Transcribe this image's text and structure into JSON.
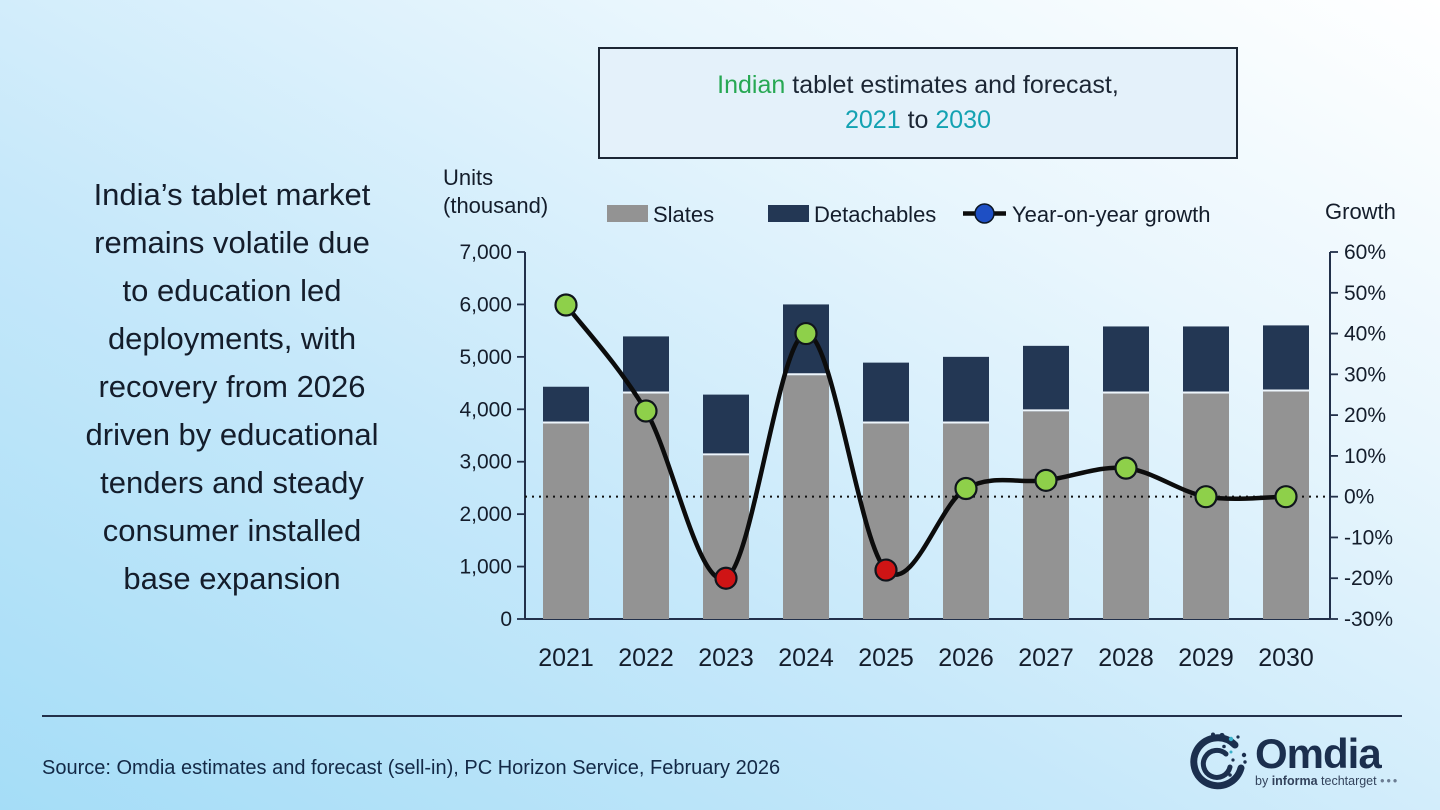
{
  "title": {
    "highlight": "Indian",
    "rest": " tablet estimates and forecast,",
    "year_start": "2021",
    "to_word": " to ",
    "year_end": "2030"
  },
  "message": "India’s tablet market\nremains volatile due\nto education led\ndeployments, with\nrecovery from 2026\ndriven by educational\ntenders and steady\nconsumer installed\nbase expansion",
  "source": "Source: Omdia estimates and forecast (sell-in), PC Horizon Service, February 2026",
  "logo": {
    "name": "Omdia",
    "tagline_by": "by",
    "tagline_informa": "informa",
    "tagline_techtarget": "techtarget",
    "tagline_dots": "•••"
  },
  "chart_data": {
    "type": "combo: stacked bar + line",
    "categories": [
      "2021",
      "2022",
      "2023",
      "2024",
      "2025",
      "2026",
      "2027",
      "2028",
      "2029",
      "2030"
    ],
    "series": [
      {
        "name": "Slates",
        "type": "bar",
        "color": "#939393",
        "values": [
          3730,
          4300,
          3120,
          4650,
          3730,
          3730,
          3960,
          4300,
          4300,
          4340
        ]
      },
      {
        "name": "Detachables",
        "type": "bar",
        "color": "#233754",
        "values": [
          700,
          1090,
          1160,
          1350,
          1160,
          1270,
          1250,
          1280,
          1280,
          1260
        ]
      },
      {
        "name": "Year-on-year growth",
        "type": "line",
        "color": "#0c0c0c",
        "legend_marker_color": "#1e4fc4",
        "values_pct": [
          47,
          21,
          -20,
          40,
          -18,
          2,
          4,
          7,
          0,
          0
        ],
        "marker_colors": [
          "#8ed04a",
          "#8ed04a",
          "#cf1415",
          "#8ed04a",
          "#cf1415",
          "#8ed04a",
          "#8ed04a",
          "#8ed04a",
          "#8ed04a",
          "#8ed04a"
        ]
      }
    ],
    "left_axis": {
      "title_line1": "Units",
      "title_line2": "(thousand)",
      "range": [
        0,
        7000
      ],
      "ticks": [
        0,
        1000,
        2000,
        3000,
        4000,
        5000,
        6000,
        7000
      ]
    },
    "right_axis": {
      "title": "Growth",
      "range_pct": [
        -30,
        60
      ],
      "ticks_pct": [
        -30,
        -20,
        -10,
        0,
        10,
        20,
        30,
        40,
        50,
        60
      ]
    },
    "zero_line": true,
    "grid": false,
    "legend_position": "top"
  }
}
